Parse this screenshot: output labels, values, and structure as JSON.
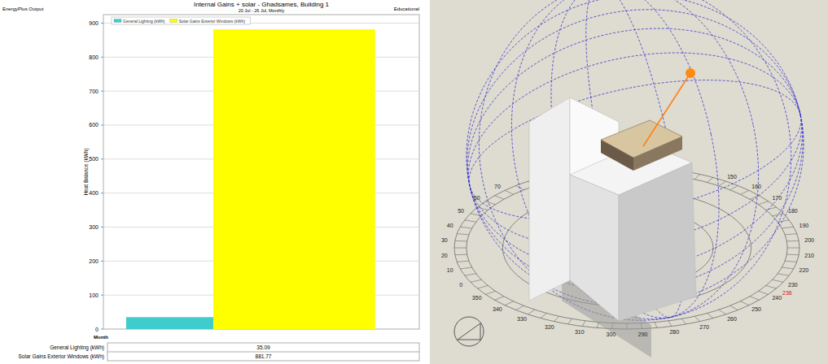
{
  "chart_data": {
    "type": "bar",
    "title": "Internal Gains + solar - Ghadsames, Building 1",
    "subtitle": "20 Jul - 26 Jul, Monthly",
    "annotations": [
      "EnergyPlus Output",
      "Educational"
    ],
    "x_label": "Month",
    "y_label": "Heat Balance (kWh)",
    "categories": [
      null
    ],
    "series": [
      {
        "name": "General Lighting (kWh)",
        "color": "#3ecccc",
        "values": [
          35.09
        ]
      },
      {
        "name": "Solar Gains Exterior Windows (kWh)",
        "color": "#ffff00",
        "values": [
          881.77
        ]
      }
    ],
    "ylim": [
      0,
      925
    ],
    "yticks": [
      0,
      100,
      200,
      300,
      400,
      500,
      600,
      700,
      800,
      900
    ],
    "grid": true,
    "legend": "upper left"
  },
  "sun_path": {
    "azimuth_labels": [
      0,
      10,
      20,
      30,
      40,
      50,
      60,
      70,
      150,
      160,
      170,
      180,
      190,
      200,
      210,
      220,
      230,
      240,
      250,
      260,
      270,
      280,
      290,
      300,
      310,
      320,
      330,
      340,
      350
    ],
    "highlight_azimuth": 236
  }
}
